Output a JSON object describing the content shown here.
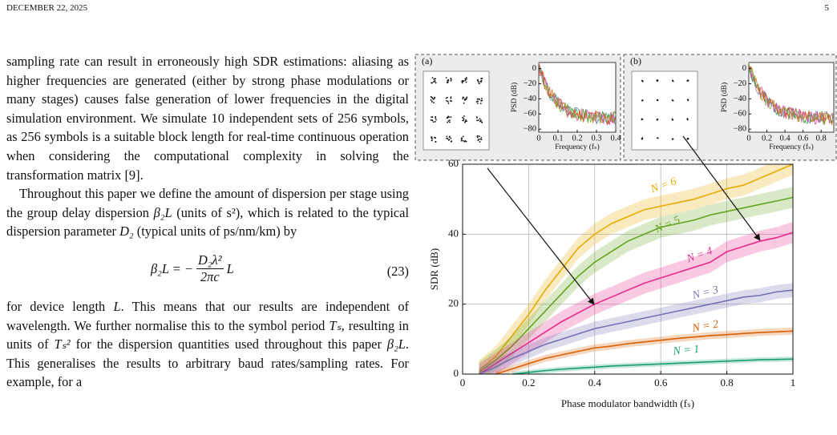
{
  "header": {
    "date": "DECEMBER 22, 2025",
    "page": "5"
  },
  "body": {
    "paragraph_1": "sampling rate can result in erroneously high SDR estimations: aliasing as higher frequencies are generated (either by strong phase modulations or many stages) causes false generation of lower frequencies in the digital simulation environment. We simulate 10 independent sets of 256 symbols, as 256 symbols is a suitable block length for real-time continuous operation when considering the computational complexity in solving the transformation matrix [9].",
    "paragraph_2": [
      "Throughout this paper we define the amount of dispersion per stage using the group delay dispersion ",
      "β₂L",
      " (units of s²), which is related to the typical dispersion parameter ",
      "D₂",
      " (typical units of ps/nm/km) by"
    ],
    "equation": {
      "lhs": "β₂L = −",
      "numerator": "D₂λ²",
      "denominator": "2πc",
      "rhs": "L",
      "number": "(23)"
    },
    "paragraph_3": [
      "for device length ",
      "L",
      ". This means that our results are independent of wavelength. We further normalise this to the symbol period ",
      "Tₛ",
      ", resulting in units of ",
      "Tₛ²",
      " for the dispersion quantities used throughout this paper ",
      "β₂L",
      ". This generalises the results to arbitrary baud rates/sampling rates. For example, for a"
    ]
  },
  "chart_data": [
    {
      "type": "line",
      "ylabel": "SDR (dB)",
      "xlabel": "Phase modulator bandwidth (fₛ)",
      "x": [
        0.05,
        0.1,
        0.15,
        0.2,
        0.25,
        0.3,
        0.35,
        0.4,
        0.45,
        0.5,
        0.55,
        0.6,
        0.65,
        0.7,
        0.75,
        0.8,
        0.85,
        0.9,
        0.95,
        1
      ],
      "xlim": [
        0,
        1
      ],
      "xticks": [
        0,
        0.2,
        0.4,
        0.6,
        0.8,
        1
      ],
      "ylim": [
        0,
        60
      ],
      "yticks": [
        0,
        20,
        40,
        60
      ],
      "grid": true,
      "series": [
        {
          "name": "N = 6",
          "color": "#e6ab02",
          "spread": 3,
          "values": [
            1,
            5,
            11,
            17,
            24,
            30,
            36,
            40,
            43,
            45,
            47,
            48,
            49,
            50,
            51.5,
            53,
            54,
            56,
            58,
            60
          ]
        },
        {
          "name": "N = 5",
          "color": "#66a61e",
          "spread": 3,
          "values": [
            0.5,
            4,
            8,
            13,
            18,
            23,
            28,
            32,
            35,
            38,
            40,
            42,
            43,
            44,
            45.5,
            46.5,
            47.5,
            48.5,
            49.5,
            50.5
          ]
        },
        {
          "name": "N = 4",
          "color": "#e7298a",
          "spread": 3,
          "values": [
            0,
            3,
            6,
            9,
            12,
            15,
            17.5,
            20,
            22,
            24,
            26,
            27.5,
            29,
            30.5,
            32,
            35,
            36.5,
            38,
            39,
            40.5
          ]
        },
        {
          "name": "N = 3",
          "color": "#7570b3",
          "spread": 2,
          "values": [
            0,
            2,
            4.5,
            6.5,
            8.5,
            10,
            11.5,
            13,
            14,
            15,
            16,
            17,
            18,
            19,
            20,
            21,
            22,
            22.5,
            23.5,
            24
          ]
        },
        {
          "name": "N = 2",
          "color": "#d95f02",
          "spread": 1,
          "values": [
            null,
            0,
            1.5,
            3,
            4.5,
            5.5,
            6.5,
            7.5,
            8,
            8.7,
            9.2,
            9.7,
            10.2,
            10.6,
            11,
            11.3,
            11.6,
            11.9,
            12.1,
            12.3
          ]
        },
        {
          "name": "N = 1",
          "color": "#1b9e77",
          "spread": 0.7,
          "values": [
            null,
            null,
            0,
            0.5,
            1,
            1.4,
            1.7,
            2,
            2.3,
            2.5,
            2.7,
            2.9,
            3.1,
            3.3,
            3.5,
            3.7,
            3.9,
            4.1,
            4.2,
            4.3
          ]
        }
      ]
    },
    {
      "type": "inset",
      "label": "(a)",
      "ylabel": "PSD (dB)",
      "xlabel": "Frequency (fₛ)",
      "xlim": [
        0,
        0.4
      ],
      "xticks": [
        0,
        0.1,
        0.2,
        0.3,
        0.4
      ],
      "ylim": [
        -84,
        8
      ],
      "yticks": [
        0,
        {
          "value": -20,
          "label": "−20"
        },
        {
          "value": -40,
          "label": "−40"
        },
        {
          "value": -60,
          "label": "−60"
        },
        {
          "value": -80,
          "label": "−80"
        }
      ]
    },
    {
      "type": "inset",
      "label": "(b)",
      "ylabel": "PSD (dB)",
      "xlabel": "Frequency (fₛ)",
      "xlim": [
        0,
        0.94
      ],
      "xticks": [
        0,
        0.2,
        0.4,
        0.6,
        0.8
      ],
      "ylim": [
        -84,
        8
      ],
      "yticks": [
        0,
        {
          "value": -20,
          "label": "−20"
        },
        {
          "value": -40,
          "label": "−40"
        },
        {
          "value": -60,
          "label": "−60"
        },
        {
          "value": -80,
          "label": "−80"
        }
      ]
    }
  ]
}
